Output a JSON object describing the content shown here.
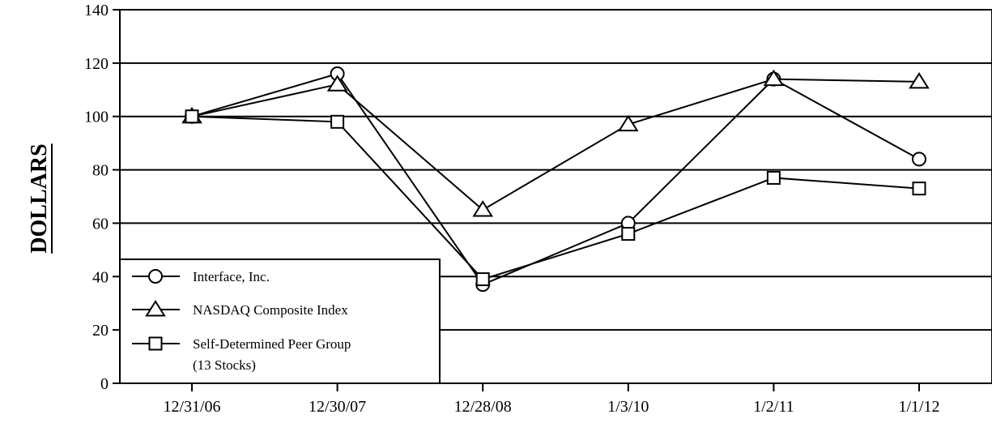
{
  "chart_data": {
    "type": "line",
    "title": "",
    "xlabel": "",
    "ylabel": "DOLLARS",
    "ylim": [
      0,
      140
    ],
    "yticks": [
      0,
      20,
      40,
      60,
      80,
      100,
      120,
      140
    ],
    "categories": [
      "12/31/06",
      "12/30/07",
      "12/28/08",
      "1/3/10",
      "1/2/11",
      "1/1/12"
    ],
    "grid": "horizontal",
    "legend_position": "bottom-left",
    "series": [
      {
        "name": "Interface, Inc.",
        "marker": "circle",
        "values": [
          100,
          116,
          37,
          60,
          114,
          84
        ]
      },
      {
        "name": "NASDAQ Composite Index",
        "marker": "triangle",
        "values": [
          100,
          112,
          65,
          97,
          114,
          113
        ]
      },
      {
        "name": "Self-Determined Peer Group",
        "name_line2": "(13 Stocks)",
        "marker": "square",
        "values": [
          100,
          98,
          39,
          56,
          77,
          73
        ]
      }
    ]
  }
}
